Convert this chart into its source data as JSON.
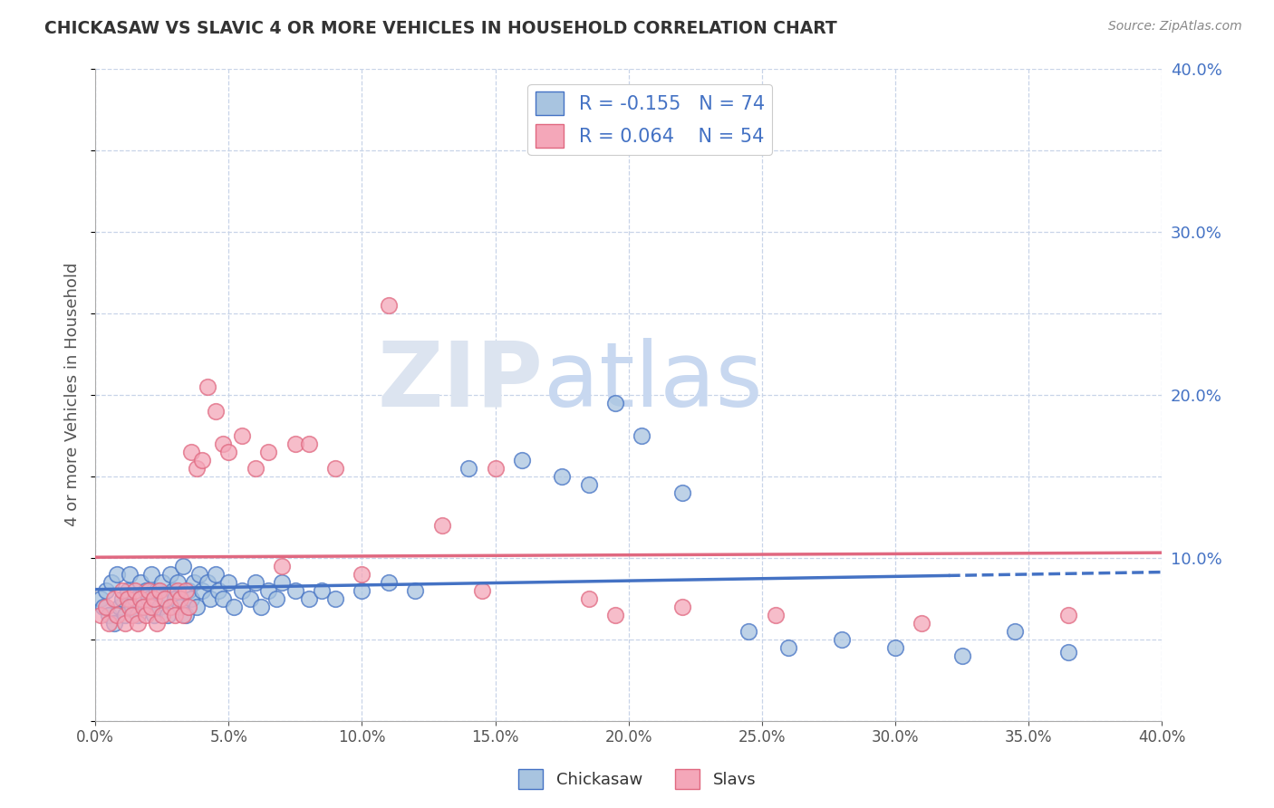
{
  "title": "CHICKASAW VS SLAVIC 4 OR MORE VEHICLES IN HOUSEHOLD CORRELATION CHART",
  "source": "Source: ZipAtlas.com",
  "ylabel": "4 or more Vehicles in Household",
  "x_label_bottom": "Chickasaw",
  "x_label_bottom2": "Slavs",
  "xlim": [
    0.0,
    0.4
  ],
  "ylim": [
    0.0,
    0.4
  ],
  "x_ticks": [
    0.0,
    0.05,
    0.1,
    0.15,
    0.2,
    0.25,
    0.3,
    0.35,
    0.4
  ],
  "y_ticks_right": [
    0.1,
    0.2,
    0.3,
    0.4
  ],
  "y_ticks_grid": [
    0.0,
    0.05,
    0.1,
    0.15,
    0.2,
    0.25,
    0.3,
    0.35,
    0.4
  ],
  "chickasaw_R": -0.155,
  "chickasaw_N": 74,
  "slavic_R": 0.064,
  "slavic_N": 54,
  "chickasaw_color": "#a8c4e0",
  "slavic_color": "#f4a7b9",
  "chickasaw_line_color": "#4472c4",
  "slavic_line_color": "#e06880",
  "background_color": "#ffffff",
  "grid_color": "#c8d4e8",
  "watermark_zip": "ZIP",
  "watermark_atlas": "atlas",
  "chickasaw_x": [
    0.002,
    0.003,
    0.004,
    0.005,
    0.006,
    0.007,
    0.008,
    0.009,
    0.01,
    0.011,
    0.012,
    0.013,
    0.014,
    0.015,
    0.016,
    0.017,
    0.018,
    0.019,
    0.02,
    0.021,
    0.022,
    0.023,
    0.024,
    0.025,
    0.026,
    0.027,
    0.028,
    0.029,
    0.03,
    0.031,
    0.032,
    0.033,
    0.034,
    0.035,
    0.036,
    0.037,
    0.038,
    0.039,
    0.04,
    0.042,
    0.043,
    0.045,
    0.046,
    0.048,
    0.05,
    0.052,
    0.055,
    0.058,
    0.06,
    0.062,
    0.065,
    0.068,
    0.07,
    0.075,
    0.08,
    0.085,
    0.09,
    0.1,
    0.11,
    0.12,
    0.14,
    0.16,
    0.175,
    0.185,
    0.195,
    0.205,
    0.22,
    0.245,
    0.26,
    0.28,
    0.3,
    0.325,
    0.345,
    0.365
  ],
  "chickasaw_y": [
    0.075,
    0.07,
    0.08,
    0.065,
    0.085,
    0.06,
    0.09,
    0.07,
    0.075,
    0.065,
    0.08,
    0.09,
    0.07,
    0.075,
    0.065,
    0.085,
    0.07,
    0.08,
    0.075,
    0.09,
    0.065,
    0.08,
    0.07,
    0.085,
    0.075,
    0.065,
    0.09,
    0.08,
    0.075,
    0.085,
    0.07,
    0.095,
    0.065,
    0.08,
    0.075,
    0.085,
    0.07,
    0.09,
    0.08,
    0.085,
    0.075,
    0.09,
    0.08,
    0.075,
    0.085,
    0.07,
    0.08,
    0.075,
    0.085,
    0.07,
    0.08,
    0.075,
    0.085,
    0.08,
    0.075,
    0.08,
    0.075,
    0.08,
    0.085,
    0.08,
    0.155,
    0.16,
    0.15,
    0.145,
    0.195,
    0.175,
    0.14,
    0.055,
    0.045,
    0.05,
    0.045,
    0.04,
    0.055,
    0.042
  ],
  "slavic_x": [
    0.002,
    0.004,
    0.005,
    0.007,
    0.008,
    0.01,
    0.011,
    0.012,
    0.013,
    0.014,
    0.015,
    0.016,
    0.017,
    0.018,
    0.019,
    0.02,
    0.021,
    0.022,
    0.023,
    0.024,
    0.025,
    0.026,
    0.028,
    0.03,
    0.031,
    0.032,
    0.033,
    0.034,
    0.035,
    0.036,
    0.038,
    0.04,
    0.042,
    0.045,
    0.048,
    0.05,
    0.055,
    0.06,
    0.065,
    0.07,
    0.075,
    0.08,
    0.09,
    0.1,
    0.11,
    0.13,
    0.145,
    0.15,
    0.185,
    0.195,
    0.22,
    0.255,
    0.31,
    0.365
  ],
  "slavic_y": [
    0.065,
    0.07,
    0.06,
    0.075,
    0.065,
    0.08,
    0.06,
    0.075,
    0.07,
    0.065,
    0.08,
    0.06,
    0.075,
    0.07,
    0.065,
    0.08,
    0.07,
    0.075,
    0.06,
    0.08,
    0.065,
    0.075,
    0.07,
    0.065,
    0.08,
    0.075,
    0.065,
    0.08,
    0.07,
    0.165,
    0.155,
    0.16,
    0.205,
    0.19,
    0.17,
    0.165,
    0.175,
    0.155,
    0.165,
    0.095,
    0.17,
    0.17,
    0.155,
    0.09,
    0.255,
    0.12,
    0.08,
    0.155,
    0.075,
    0.065,
    0.07,
    0.065,
    0.06,
    0.065
  ]
}
